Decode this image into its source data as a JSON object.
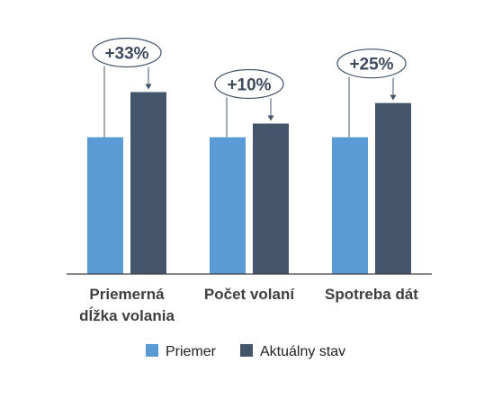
{
  "chart_data": {
    "type": "bar",
    "categories": [
      [
        "Priemerná",
        "dĺžka volania"
      ],
      [
        "Počet volaní"
      ],
      [
        "Spotreba dát"
      ]
    ],
    "series": [
      {
        "name": "Priemer",
        "values": [
          100,
          100,
          100
        ],
        "color": "#5b9bd5"
      },
      {
        "name": "Aktuálny stav",
        "values": [
          133,
          110,
          125
        ],
        "color": "#44546a"
      }
    ],
    "annotations": [
      "+33%",
      "+10%",
      "+25%"
    ],
    "ylim": [
      0,
      155
    ],
    "legend_position": "bottom",
    "grid": false,
    "colors": {
      "callout_border": "#44546a",
      "callout_text": "#3f4a5e",
      "baseline": "#404040"
    }
  }
}
